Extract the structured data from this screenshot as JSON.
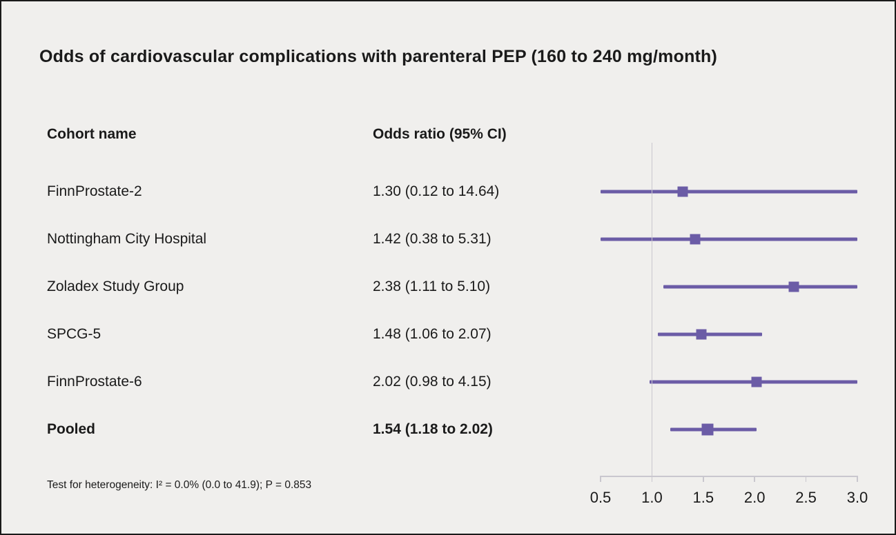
{
  "title": "Odds of cardiovascular complications with parenteral PEP (160 to 240 mg/month)",
  "columns": {
    "cohort": "Cohort name",
    "odds_ratio": "Odds ratio (95% CI)"
  },
  "footnote": "Test for heterogeneity: I² = 0.0% (0.0 to 41.9); P = 0.853",
  "colors": {
    "marker": "#6b5ca6",
    "line": "#6b5ca6",
    "axis": "#c9c7ce",
    "background": "#f0efed",
    "text": "#1a1a1a"
  },
  "chart_data": {
    "type": "forest",
    "title": "Odds of cardiovascular complications with parenteral PEP (160 to 240 mg/month)",
    "xlim": [
      0.5,
      3.0
    ],
    "axis_ticks": [
      "0.5",
      "1.0",
      "1.5",
      "2.0",
      "2.5",
      "3.0"
    ],
    "tick_values": [
      0.5,
      1.0,
      1.5,
      2.0,
      2.5,
      3.0
    ],
    "reference_line": 1.0,
    "grid": false,
    "legend": "none",
    "rows": [
      {
        "label": "FinnProstate-2",
        "or_text": "1.30 (0.12 to 14.64)",
        "or": 1.3,
        "lo": 0.12,
        "hi": 14.64,
        "bold": false
      },
      {
        "label": "Nottingham City Hospital",
        "or_text": "1.42 (0.38 to 5.31)",
        "or": 1.42,
        "lo": 0.38,
        "hi": 5.31,
        "bold": false
      },
      {
        "label": "Zoladex Study Group",
        "or_text": "2.38 (1.11 to 5.10)",
        "or": 2.38,
        "lo": 1.11,
        "hi": 5.1,
        "bold": false
      },
      {
        "label": "SPCG-5",
        "or_text": "1.48 (1.06 to 2.07)",
        "or": 1.48,
        "lo": 1.06,
        "hi": 2.07,
        "bold": false
      },
      {
        "label": "FinnProstate-6",
        "or_text": "2.02 (0.98 to 4.15)",
        "or": 2.02,
        "lo": 0.98,
        "hi": 4.15,
        "bold": false
      },
      {
        "label": "Pooled",
        "or_text": "1.54 (1.18 to 2.02)",
        "or": 1.54,
        "lo": 1.18,
        "hi": 2.02,
        "bold": true
      }
    ]
  }
}
